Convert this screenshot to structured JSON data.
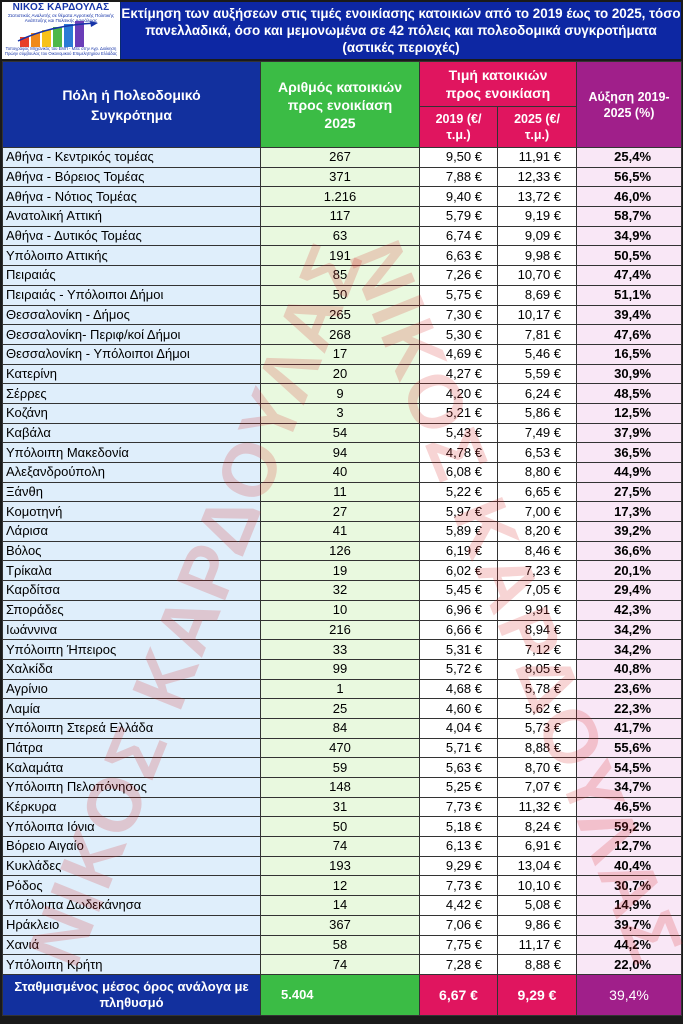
{
  "logo": {
    "name": "ΝΙΚΟΣ ΚΑΡΔΟΥΛΑΣ",
    "subtitle": "Στατιστικός Αναλυτής σε θέματα Αγροτικής Πολιτικής Ανάπτυξης και Πολιτικής Ασφάλειας",
    "footer": "Τοπογράφος Μηχανικός του ΕΜΠ - MSc στην Αγρ. Διοίκηση Πρώην σύμβουλος του Οικονομικού Επιμελητηρίου Ελλάδας"
  },
  "title": "Εκτίμηση των αυξήσεων στις τιμές ενοικίασης κατοικιών από το 2019 έως το 2025, τόσο πανελλαδικά, όσο και μεμονωμένα σε 42 πόλεις και πολεοδομικά συγκροτήματα (αστικές περιοχές)",
  "headers": {
    "city": "Πόλη ή Πολεοδομικό Συγκρότημα",
    "count": "Αριθμός κατοικιών προς ενοικίαση 2025",
    "price": "Τιμή κατοικιών προς ενοικίαση",
    "y2019": "2019 (€/τ.μ.)",
    "y2025": "2025 (€/τ.μ.)",
    "increase": "Αύξηση 2019-2025 (%)"
  },
  "rows": [
    {
      "city": "Αθήνα - Κεντρικός τομέας",
      "count": "267",
      "p2019": "9,50 €",
      "p2025": "11,91 €",
      "inc": "25,4%"
    },
    {
      "city": "Αθήνα - Βόρειος Τομέας",
      "count": "371",
      "p2019": "7,88 €",
      "p2025": "12,33 €",
      "inc": "56,5%"
    },
    {
      "city": "Αθήνα - Νότιος Τομέας",
      "count": "1.216",
      "p2019": "9,40 €",
      "p2025": "13,72 €",
      "inc": "46,0%"
    },
    {
      "city": "Ανατολική Αττική",
      "count": "117",
      "p2019": "5,79 €",
      "p2025": "9,19 €",
      "inc": "58,7%"
    },
    {
      "city": "Αθήνα - Δυτικός Τομέας",
      "count": "63",
      "p2019": "6,74 €",
      "p2025": "9,09 €",
      "inc": "34,9%"
    },
    {
      "city": "Υπόλοιπο Αττικής",
      "count": "191",
      "p2019": "6,63 €",
      "p2025": "9,98 €",
      "inc": "50,5%"
    },
    {
      "city": "Πειραιάς",
      "count": "85",
      "p2019": "7,26 €",
      "p2025": "10,70 €",
      "inc": "47,4%"
    },
    {
      "city": "Πειραιάς - Υπόλοιποι Δήμοι",
      "count": "50",
      "p2019": "5,75 €",
      "p2025": "8,69 €",
      "inc": "51,1%"
    },
    {
      "city": "Θεσσαλονίκη - Δήμος",
      "count": "265",
      "p2019": "7,30 €",
      "p2025": "10,17 €",
      "inc": "39,4%"
    },
    {
      "city": "Θεσσαλονίκη-  Περιφ/κοί Δήμοι",
      "count": "268",
      "p2019": "5,30 €",
      "p2025": "7,81 €",
      "inc": "47,6%"
    },
    {
      "city": "Θεσσαλονίκη - Υπόλοιποι Δήμοι",
      "count": "17",
      "p2019": "4,69 €",
      "p2025": "5,46 €",
      "inc": "16,5%"
    },
    {
      "city": "Κατερίνη",
      "count": "20",
      "p2019": "4,27 €",
      "p2025": "5,59 €",
      "inc": "30,9%"
    },
    {
      "city": "Σέρρες",
      "count": "9",
      "p2019": "4,20 €",
      "p2025": "6,24 €",
      "inc": "48,5%"
    },
    {
      "city": "Κοζάνη",
      "count": "3",
      "p2019": "5,21 €",
      "p2025": "5,86 €",
      "inc": "12,5%"
    },
    {
      "city": "Καβάλα",
      "count": "54",
      "p2019": "5,43 €",
      "p2025": "7,49 €",
      "inc": "37,9%"
    },
    {
      "city": "Υπόλοιπη Μακεδονία",
      "count": "94",
      "p2019": "4,78 €",
      "p2025": "6,53 €",
      "inc": "36,5%"
    },
    {
      "city": "Αλεξανδρούπολη",
      "count": "40",
      "p2019": "6,08 €",
      "p2025": "8,80 €",
      "inc": "44,9%"
    },
    {
      "city": "Ξάνθη",
      "count": "11",
      "p2019": "5,22 €",
      "p2025": "6,65 €",
      "inc": "27,5%"
    },
    {
      "city": "Κομοτηνή",
      "count": "27",
      "p2019": "5,97 €",
      "p2025": "7,00 €",
      "inc": "17,3%"
    },
    {
      "city": "Λάρισα",
      "count": "41",
      "p2019": "5,89 €",
      "p2025": "8,20 €",
      "inc": "39,2%"
    },
    {
      "city": "Βόλος",
      "count": "126",
      "p2019": "6,19 €",
      "p2025": "8,46 €",
      "inc": "36,6%"
    },
    {
      "city": "Τρίκαλα",
      "count": "19",
      "p2019": "6,02 €",
      "p2025": "7,23 €",
      "inc": "20,1%"
    },
    {
      "city": "Καρδίτσα",
      "count": "32",
      "p2019": "5,45 €",
      "p2025": "7,05 €",
      "inc": "29,4%"
    },
    {
      "city": "Σποράδες",
      "count": "10",
      "p2019": "6,96 €",
      "p2025": "9,91 €",
      "inc": "42,3%"
    },
    {
      "city": "Ιωάννινα",
      "count": "216",
      "p2019": "6,66 €",
      "p2025": "8,94 €",
      "inc": "34,2%"
    },
    {
      "city": "Υπόλοιπη Ήπειρος",
      "count": "33",
      "p2019": "5,31 €",
      "p2025": "7,12 €",
      "inc": "34,2%"
    },
    {
      "city": "Χαλκίδα",
      "count": "99",
      "p2019": "5,72 €",
      "p2025": "8,05 €",
      "inc": "40,8%"
    },
    {
      "city": "Αγρίνιο",
      "count": "1",
      "p2019": "4,68 €",
      "p2025": "5,78 €",
      "inc": "23,6%"
    },
    {
      "city": "Λαμία",
      "count": "25",
      "p2019": "4,60 €",
      "p2025": "5,62 €",
      "inc": "22,3%"
    },
    {
      "city": "Υπόλοιπη Στερεά Ελλάδα",
      "count": "84",
      "p2019": "4,04 €",
      "p2025": "5,73 €",
      "inc": "41,7%"
    },
    {
      "city": "Πάτρα",
      "count": "470",
      "p2019": "5,71 €",
      "p2025": "8,88 €",
      "inc": "55,6%"
    },
    {
      "city": "Καλαμάτα",
      "count": "59",
      "p2019": "5,63 €",
      "p2025": "8,70 €",
      "inc": "54,5%"
    },
    {
      "city": "Υπόλοιπη Πελοπόνησος",
      "count": "148",
      "p2019": "5,25 €",
      "p2025": "7,07 €",
      "inc": "34,7%"
    },
    {
      "city": "Κέρκυρα",
      "count": "31",
      "p2019": "7,73 €",
      "p2025": "11,32 €",
      "inc": "46,5%"
    },
    {
      "city": "Υπόλοιπα Ιόνια",
      "count": "50",
      "p2019": "5,18 €",
      "p2025": "8,24 €",
      "inc": "59,2%"
    },
    {
      "city": "Βόρειο Αιγαίο",
      "count": "74",
      "p2019": "6,13 €",
      "p2025": "6,91 €",
      "inc": "12,7%"
    },
    {
      "city": "Κυκλάδες",
      "count": "193",
      "p2019": "9,29 €",
      "p2025": "13,04 €",
      "inc": "40,4%"
    },
    {
      "city": "Ρόδος",
      "count": "12",
      "p2019": "7,73 €",
      "p2025": "10,10 €",
      "inc": "30,7%"
    },
    {
      "city": "Υπόλοιπα Δωδεκάνησα",
      "count": "14",
      "p2019": "4,42 €",
      "p2025": "5,08 €",
      "inc": "14,9%"
    },
    {
      "city": "Ηράκλειο",
      "count": "367",
      "p2019": "7,06 €",
      "p2025": "9,86 €",
      "inc": "39,7%"
    },
    {
      "city": "Χανιά",
      "count": "58",
      "p2019": "7,75 €",
      "p2025": "11,17 €",
      "inc": "44,2%"
    },
    {
      "city": "Υπόλοιπη Κρήτη",
      "count": "74",
      "p2019": "7,28 €",
      "p2025": "8,88 €",
      "inc": "22,0%"
    }
  ],
  "footer": {
    "label": "Σταθμισμένος μέσος όρος ανάλογα με πληθυσμό",
    "count": "5.404",
    "p2019": "6,67 €",
    "p2025": "9,29 €",
    "inc": "39,4%"
  },
  "watermark": {
    "text_left": "ΝΙΚΟΣ ΚΑΡΔΟΥΛΑΣ",
    "text_right": "ΝΙΚΟΣ ΚΑΡΔΟΥΛΑΣ"
  },
  "colors": {
    "banner_blue": "#0d27a3",
    "header_green": "#3bbc45",
    "header_pink": "#e0155f",
    "header_purple": "#a01f8a"
  }
}
